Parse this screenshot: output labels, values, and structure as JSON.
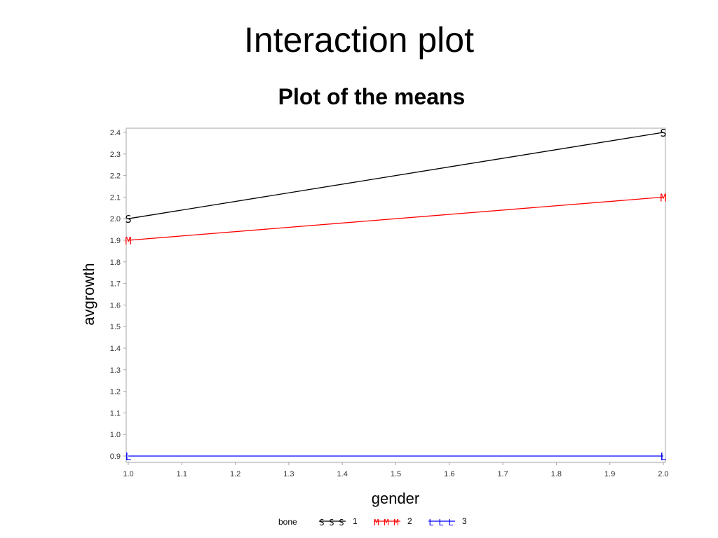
{
  "slide": {
    "title": "Interaction plot"
  },
  "chart_data": {
    "type": "line",
    "title": "Plot of the means",
    "xlabel": "gender",
    "ylabel": "avgrowth",
    "x": [
      1.0,
      2.0
    ],
    "xlim": [
      1.0,
      2.0
    ],
    "ylim": [
      0.9,
      2.4
    ],
    "x_ticks": [
      "1.0",
      "1.1",
      "1.2",
      "1.3",
      "1.4",
      "1.5",
      "1.6",
      "1.7",
      "1.8",
      "1.9",
      "2.0"
    ],
    "y_ticks": [
      "0.9",
      "1.0",
      "1.1",
      "1.2",
      "1.3",
      "1.4",
      "1.5",
      "1.6",
      "1.7",
      "1.8",
      "1.9",
      "2.0",
      "2.1",
      "2.2",
      "2.3",
      "2.4"
    ],
    "grid": false,
    "legend": {
      "title": "bone",
      "placement": "bottom",
      "entries": [
        {
          "label": "1",
          "marker": "S",
          "color": "#000000"
        },
        {
          "label": "2",
          "marker": "M",
          "color": "#ff0000"
        },
        {
          "label": "3",
          "marker": "L",
          "color": "#0000ff"
        }
      ]
    },
    "series": [
      {
        "name": "1",
        "marker": "S",
        "color": "#000000",
        "values": [
          2.0,
          2.4
        ]
      },
      {
        "name": "2",
        "marker": "M",
        "color": "#ff0000",
        "values": [
          1.9,
          2.1
        ]
      },
      {
        "name": "3",
        "marker": "L",
        "color": "#0000ff",
        "values": [
          0.9,
          0.9
        ]
      }
    ]
  }
}
